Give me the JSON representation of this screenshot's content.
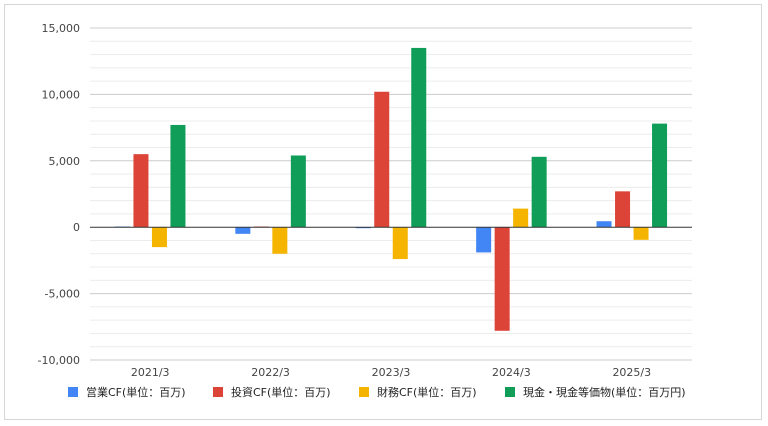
{
  "chart_data": {
    "type": "bar",
    "title": "",
    "xlabel": "",
    "ylabel": "",
    "categories": [
      "2021/3",
      "2022/3",
      "2023/3",
      "2024/3",
      "2025/3"
    ],
    "ylim": [
      -10000,
      15000
    ],
    "yticks": [
      15000,
      10000,
      5000,
      0,
      -5000,
      -10000
    ],
    "ytick_labels": [
      "15,000",
      "10,000",
      "5,000",
      "0",
      "-5,000",
      "-10,000"
    ],
    "minor_grid": true,
    "legend_position": "bottom",
    "series": [
      {
        "name": "営業CF(単位：百万)",
        "color": "#4285F4",
        "values": [
          50,
          -500,
          -50,
          -1900,
          450
        ]
      },
      {
        "name": "投資CF(単位：百万)",
        "color": "#DB4437",
        "values": [
          5500,
          50,
          10200,
          -7800,
          2700
        ]
      },
      {
        "name": "財務CF(単位：百万)",
        "color": "#F4B400",
        "values": [
          -1500,
          -2000,
          -2400,
          1400,
          -950
        ]
      },
      {
        "name": "現金・現金等価物(単位：百万円)",
        "color": "#0F9D58",
        "values": [
          7700,
          5400,
          13500,
          5300,
          7800
        ]
      }
    ]
  }
}
